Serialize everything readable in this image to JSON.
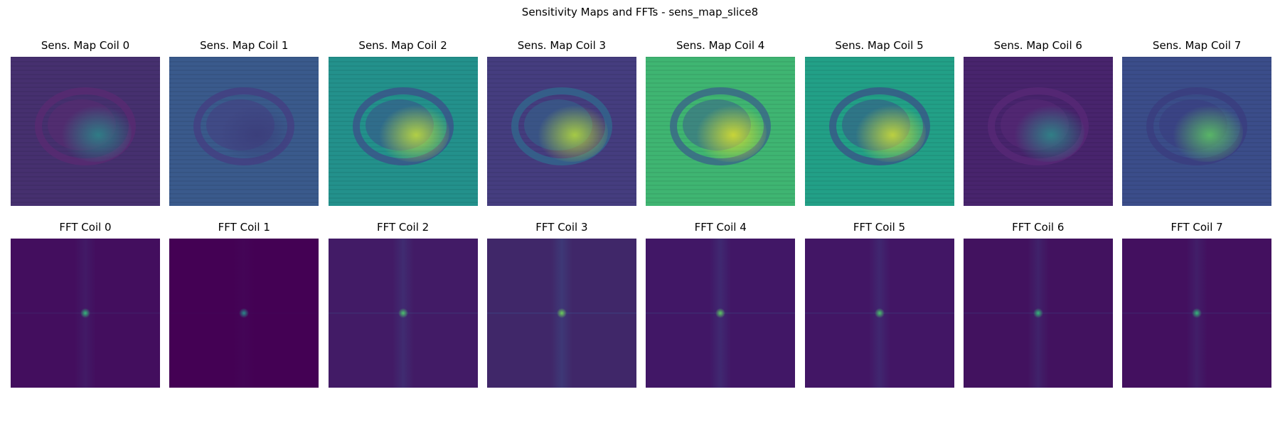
{
  "figure": {
    "title": "Sensitivity Maps and FFTs - sens_map_slice8"
  },
  "rows": [
    {
      "kind": "sensitivity",
      "panels": [
        {
          "title": "Sens. Map Coil 0",
          "bg": "#46306f",
          "blob_color": "#2a8a8a",
          "ring_color": "#5b2a72"
        },
        {
          "title": "Sens. Map Coil 1",
          "bg": "#3a5a8c",
          "blob_color": "#3a3d7a",
          "ring_color": "#463a80"
        },
        {
          "title": "Sens. Map Coil 2",
          "bg": "#23918c",
          "blob_color": "#c8e03a",
          "ring_color": "#3e4a89"
        },
        {
          "title": "Sens. Map Coil 3",
          "bg": "#453d7f",
          "blob_color": "#b8de3a",
          "ring_color": "#2f6c8e"
        },
        {
          "title": "Sens. Map Coil 4",
          "bg": "#3fb572",
          "blob_color": "#e0e22c",
          "ring_color": "#3b5a8c"
        },
        {
          "title": "Sens. Map Coil 5",
          "bg": "#22a087",
          "blob_color": "#d4e034",
          "ring_color": "#3c4b88"
        },
        {
          "title": "Sens. Map Coil 6",
          "bg": "#48246d",
          "blob_color": "#2b8e8a",
          "ring_color": "#5a2a78"
        },
        {
          "title": "Sens. Map Coil 7",
          "bg": "#3b4d8a",
          "blob_color": "#5ec962",
          "ring_color": "#3a3a7e"
        }
      ]
    },
    {
      "kind": "fft",
      "panels": [
        {
          "title": "FFT Coil 0",
          "bg": "#430e5e",
          "peak_color": "#35b779",
          "streak_opacity": 0.18
        },
        {
          "title": "FFT Coil 1",
          "bg": "#440154",
          "peak_color": "#2a8a8a",
          "streak_opacity": 0.05
        },
        {
          "title": "FFT Coil 2",
          "bg": "#421b66",
          "peak_color": "#4cc26c",
          "streak_opacity": 0.3
        },
        {
          "title": "FFT Coil 3",
          "bg": "#402769",
          "peak_color": "#6cce59",
          "streak_opacity": 0.4
        },
        {
          "title": "FFT Coil 4",
          "bg": "#411766",
          "peak_color": "#5ec962",
          "streak_opacity": 0.3
        },
        {
          "title": "FFT Coil 5",
          "bg": "#421665",
          "peak_color": "#4cc26c",
          "streak_opacity": 0.28
        },
        {
          "title": "FFT Coil 6",
          "bg": "#42125f",
          "peak_color": "#35b779",
          "streak_opacity": 0.25
        },
        {
          "title": "FFT Coil 7",
          "bg": "#43105f",
          "peak_color": "#35b779",
          "streak_opacity": 0.22
        }
      ]
    }
  ]
}
